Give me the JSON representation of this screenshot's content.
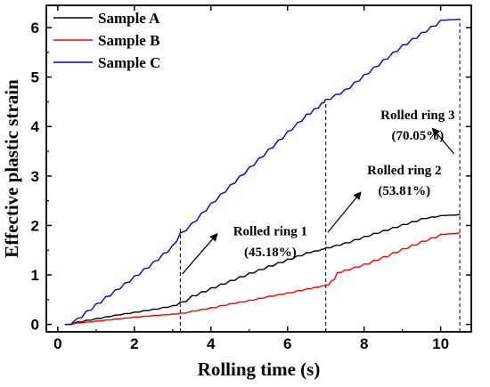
{
  "chart_data": {
    "type": "line",
    "title": "",
    "xlabel": "Rolling time (s)",
    "ylabel": "Effective plastic strain",
    "xlim": [
      -0.3,
      10.8
    ],
    "ylim": [
      -0.15,
      6.45
    ],
    "xticks": [
      0,
      2,
      4,
      6,
      8,
      10
    ],
    "yticks": [
      0,
      1,
      2,
      3,
      4,
      5,
      6
    ],
    "grid": false,
    "legend_position": "top-left",
    "series": [
      {
        "name": "Sample A",
        "color": "#000000",
        "x": [
          0.2,
          0.5,
          1,
          1.5,
          2,
          2.5,
          3,
          3.2,
          3.5,
          4,
          4.5,
          5,
          5.5,
          6,
          6.5,
          6.9,
          7.0,
          7.5,
          8,
          8.5,
          9,
          9.5,
          10,
          10.5
        ],
        "y": [
          0,
          0.05,
          0.12,
          0.19,
          0.25,
          0.31,
          0.38,
          0.45,
          0.58,
          0.74,
          0.89,
          1.04,
          1.18,
          1.32,
          1.45,
          1.52,
          1.55,
          1.65,
          1.78,
          1.9,
          2.02,
          2.14,
          2.2,
          2.22
        ]
      },
      {
        "name": "Sample B",
        "color": "#ff0000",
        "x": [
          0.2,
          0.5,
          1,
          1.5,
          2,
          2.5,
          3,
          3.2,
          3.5,
          4,
          4.5,
          5,
          5.5,
          6,
          6.5,
          6.9,
          7.0,
          7.15,
          7.3,
          7.5,
          8,
          8.5,
          9,
          9.5,
          10,
          10.5
        ],
        "y": [
          0,
          0.03,
          0.07,
          0.11,
          0.15,
          0.18,
          0.21,
          0.23,
          0.27,
          0.34,
          0.42,
          0.49,
          0.57,
          0.64,
          0.72,
          0.78,
          0.8,
          0.88,
          1.05,
          1.1,
          1.22,
          1.37,
          1.53,
          1.68,
          1.82,
          1.85
        ]
      },
      {
        "name": "Sample C",
        "color": "#0000dd",
        "x": [
          0.2,
          0.5,
          1,
          1.5,
          2,
          2.5,
          3,
          3.2,
          3.5,
          4,
          4.5,
          5,
          5.5,
          6,
          6.5,
          6.9,
          7.0,
          7.5,
          8,
          8.5,
          9,
          9.5,
          10,
          10.5
        ],
        "y": [
          0,
          0.12,
          0.42,
          0.7,
          0.98,
          1.27,
          1.6,
          1.85,
          2.05,
          2.45,
          2.82,
          3.18,
          3.54,
          3.9,
          4.25,
          4.48,
          4.55,
          4.75,
          5.05,
          5.35,
          5.65,
          5.9,
          6.15,
          6.17
        ]
      }
    ],
    "reference_lines": [
      {
        "x": 3.2,
        "y_top": 1.98
      },
      {
        "x": 7.0,
        "y_top": 4.5
      },
      {
        "x": 10.5,
        "y_top": 6.17
      }
    ],
    "annotations": [
      {
        "line1": "Rolled ring 1",
        "line2": "(45.18%)",
        "x": 5.55,
        "y1": 1.8,
        "y2": 1.38,
        "arrow_from": [
          3.25,
          1.02
        ],
        "arrow_to": [
          4.15,
          1.82
        ]
      },
      {
        "line1": "Rolled ring 2",
        "line2": "(53.81%)",
        "x": 9.05,
        "y1": 3.03,
        "y2": 2.62,
        "arrow_from": [
          7.05,
          1.86
        ],
        "arrow_to": [
          7.9,
          2.66
        ]
      },
      {
        "line1": "Rolled ring 3",
        "line2": "(70.05%)",
        "x": 9.4,
        "y1": 4.15,
        "y2": 3.73,
        "arrow_from": [
          10.35,
          3.45
        ],
        "arrow_to": [
          9.8,
          3.95
        ]
      }
    ]
  }
}
